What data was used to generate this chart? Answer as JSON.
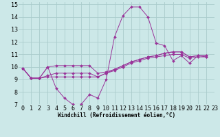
{
  "xlabel": "Windchill (Refroidissement éolien,°C)",
  "xlim": [
    -0.5,
    23
  ],
  "ylim": [
    7,
    15.2
  ],
  "yticks": [
    7,
    8,
    9,
    10,
    11,
    12,
    13,
    14,
    15
  ],
  "xticks": [
    0,
    1,
    2,
    3,
    4,
    5,
    6,
    7,
    8,
    9,
    10,
    11,
    12,
    13,
    14,
    15,
    16,
    17,
    18,
    19,
    20,
    21,
    22,
    23
  ],
  "bg_color": "#cce8e8",
  "grid_color": "#aacccc",
  "line_color": "#993399",
  "line1_x": [
    0,
    1,
    2,
    3,
    4,
    5,
    6,
    7,
    8,
    9,
    10,
    11,
    12,
    13,
    14,
    15,
    16,
    17,
    18,
    19,
    20,
    21,
    22
  ],
  "line1_y": [
    9.9,
    9.1,
    9.1,
    10.0,
    8.3,
    7.5,
    7.0,
    7.0,
    7.8,
    7.5,
    9.0,
    12.4,
    14.1,
    14.8,
    14.8,
    14.0,
    11.9,
    11.7,
    10.5,
    10.9,
    10.3,
    10.9,
    10.8
  ],
  "line2_x": [
    0,
    1,
    2,
    3,
    4,
    5,
    6,
    7,
    8,
    9,
    10,
    11,
    12,
    13,
    14,
    15,
    16,
    17,
    18,
    19,
    20,
    21,
    22
  ],
  "line2_y": [
    9.9,
    9.1,
    9.1,
    9.2,
    9.2,
    9.2,
    9.2,
    9.2,
    9.2,
    9.2,
    9.5,
    9.8,
    10.1,
    10.4,
    10.6,
    10.8,
    10.9,
    11.1,
    11.2,
    11.2,
    10.8,
    10.9,
    10.9
  ],
  "line3_x": [
    0,
    1,
    2,
    3,
    4,
    5,
    6,
    7,
    8,
    9,
    10,
    11,
    12,
    13,
    14,
    15,
    16,
    17,
    18,
    19,
    20,
    21,
    22
  ],
  "line3_y": [
    9.9,
    9.1,
    9.1,
    9.3,
    9.5,
    9.5,
    9.5,
    9.5,
    9.5,
    9.2,
    9.5,
    9.7,
    10.0,
    10.3,
    10.5,
    10.7,
    10.8,
    10.9,
    11.0,
    11.0,
    10.7,
    10.8,
    10.8
  ],
  "line4_x": [
    0,
    1,
    2,
    3,
    4,
    5,
    6,
    7,
    8,
    9,
    10,
    11,
    12,
    13,
    14,
    15,
    16,
    17,
    18,
    19,
    20,
    21,
    22
  ],
  "line4_y": [
    9.9,
    9.1,
    9.1,
    10.0,
    10.1,
    10.1,
    10.1,
    10.1,
    10.1,
    9.5,
    9.6,
    9.8,
    10.1,
    10.4,
    10.6,
    10.8,
    10.9,
    11.1,
    11.2,
    11.2,
    10.8,
    10.9,
    10.9
  ],
  "tick_fontsize": 6,
  "xlabel_fontsize": 5.5
}
